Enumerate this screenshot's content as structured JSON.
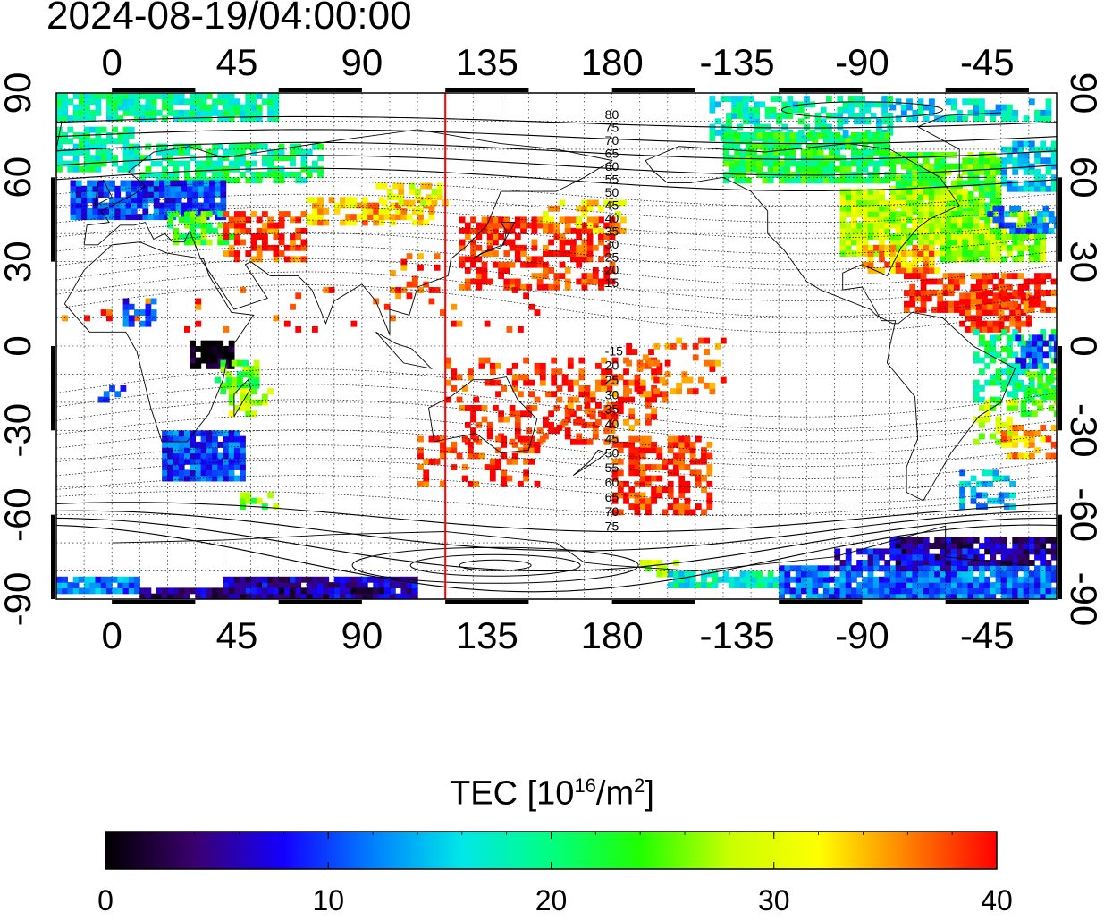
{
  "title": "2024-08-19/04:00:00",
  "map": {
    "top_lon_labels": [
      "0",
      "45",
      "90",
      "135",
      "180",
      "-135",
      "-90",
      "-45"
    ],
    "bottom_lon_labels": [
      "0",
      "45",
      "90",
      "135",
      "180",
      "-135",
      "-90",
      "-45"
    ],
    "left_lat_labels": [
      "90",
      "60",
      "30",
      "0",
      "-30",
      "-60",
      "-90"
    ],
    "right_lat_labels": [
      "90",
      "60",
      "30",
      "0",
      "-30",
      "-60",
      "-90"
    ],
    "meridian_marker_lon": 120,
    "meridian_marker_color": "#ff0000",
    "contour_labels_north": [
      "80",
      "75",
      "70",
      "65",
      "60",
      "55",
      "50",
      "45",
      "40",
      "35",
      "30",
      "25",
      "20",
      "15"
    ],
    "contour_labels_south": [
      "-15",
      "20",
      "25",
      "30",
      "35",
      "40",
      "45",
      "50",
      "55",
      "60",
      "65",
      "70",
      "75"
    ]
  },
  "colorbar": {
    "title_prefix": "TEC  [10",
    "title_exp1": "16",
    "title_mid": "/m",
    "title_exp2": "2",
    "title_suffix": "]",
    "min": 0,
    "max": 40,
    "tick_labels": [
      "0",
      "10",
      "20",
      "30",
      "40"
    ],
    "colormap": [
      "#000000",
      "#3a006e",
      "#1400ff",
      "#0080ff",
      "#00e8e8",
      "#00ff80",
      "#20ff00",
      "#c8ff00",
      "#ffff00",
      "#ff8000",
      "#ff0000"
    ]
  }
}
